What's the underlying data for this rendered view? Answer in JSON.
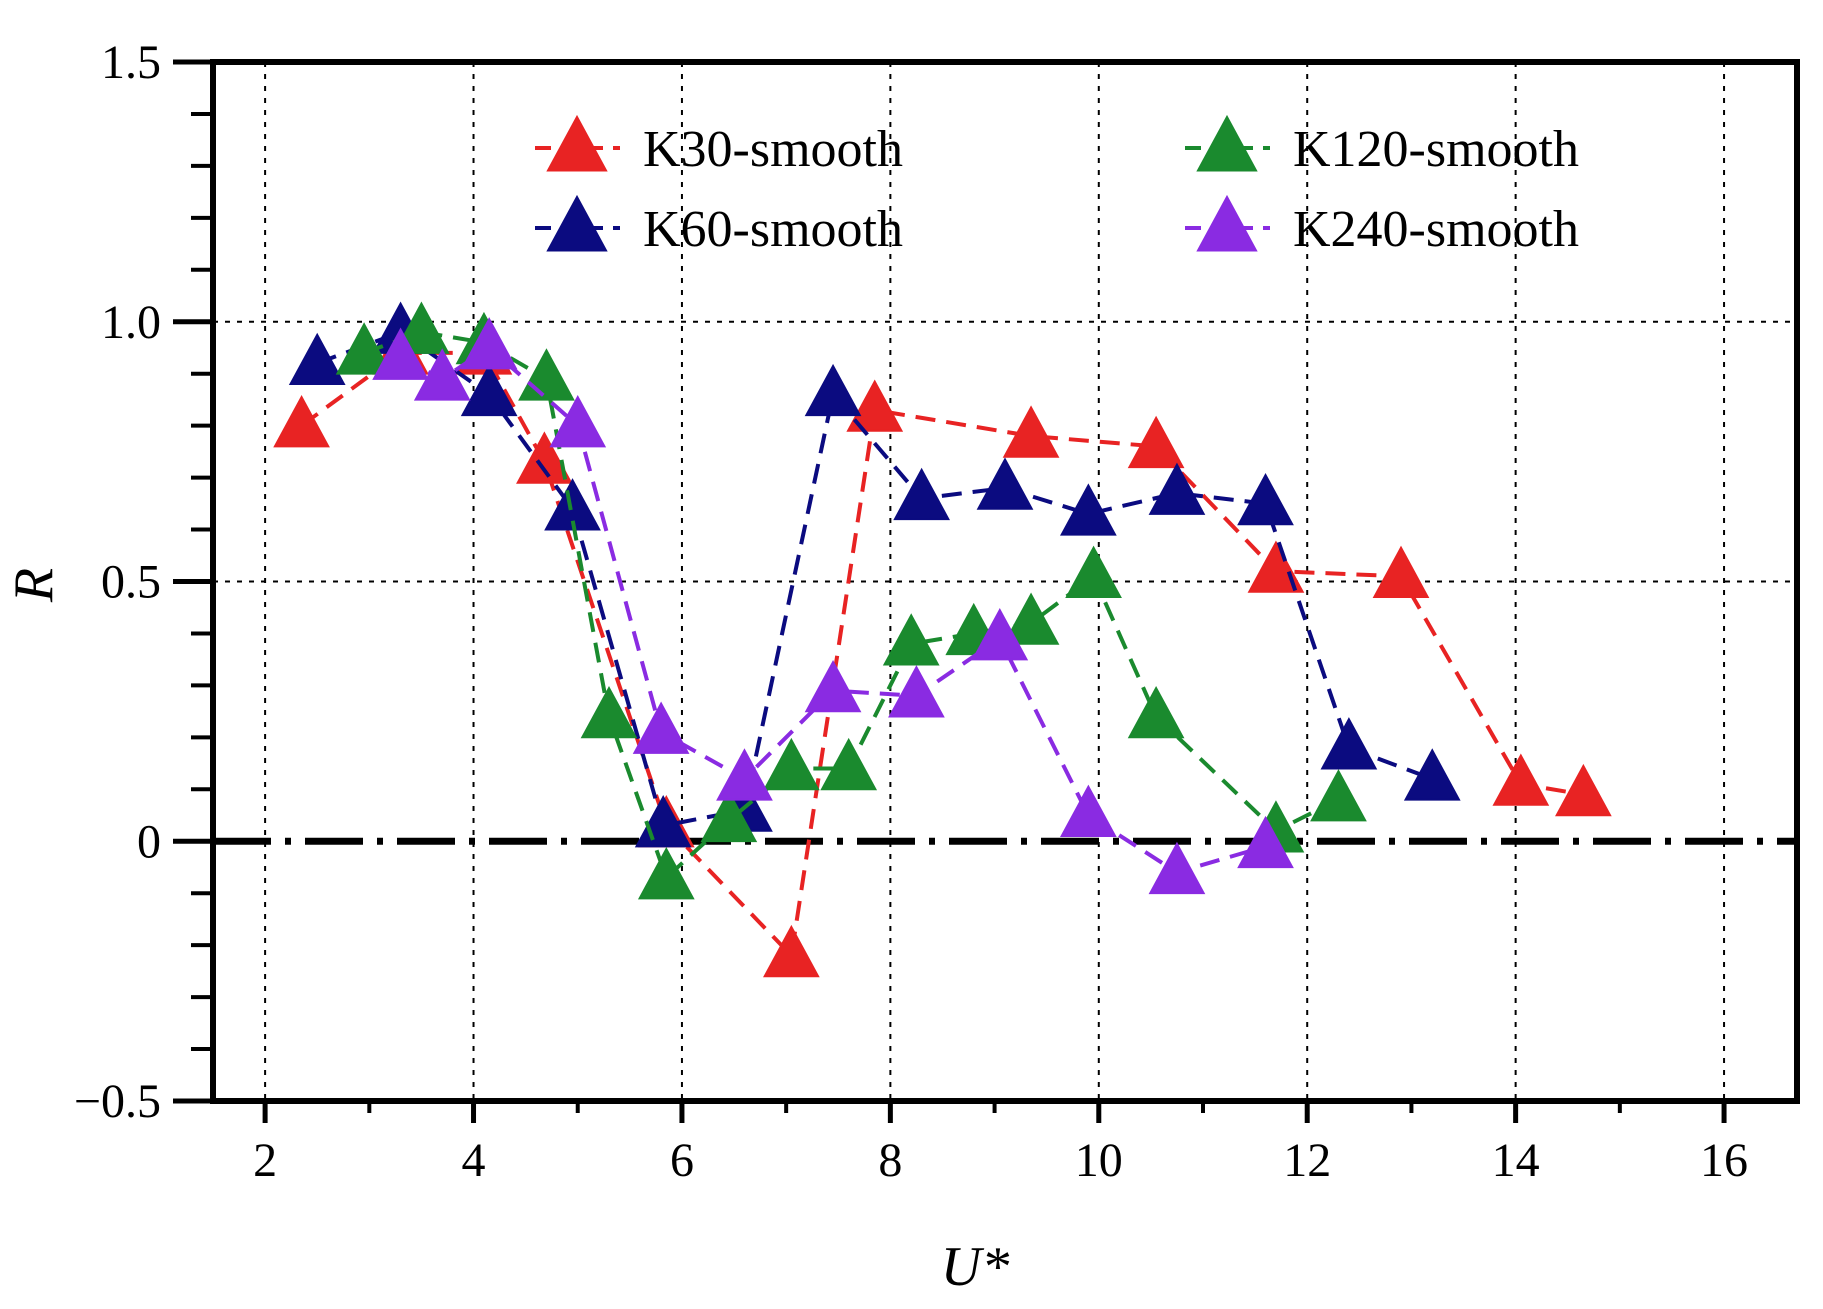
{
  "chart_data": {
    "type": "line",
    "title": "",
    "xlabel": "U*",
    "ylabel": "R",
    "xlim": [
      1.5,
      16.7
    ],
    "ylim": [
      -0.5,
      1.5
    ],
    "xticks": [
      2,
      4,
      6,
      8,
      10,
      12,
      14,
      16
    ],
    "yticks": [
      -0.5,
      0,
      0.5,
      1.0,
      1.5
    ],
    "xtick_labels": [
      "2",
      "4",
      "6",
      "8",
      "10",
      "12",
      "14",
      "16"
    ],
    "ytick_labels": [
      "−0.5",
      "0",
      "0.5",
      "1.0",
      "1.5"
    ],
    "grid": true,
    "zero_line": 0,
    "legend_position": "top-right",
    "series": [
      {
        "name": "K30-smooth",
        "color": "#e82323",
        "x": [
          2.35,
          3.3,
          4.1,
          4.68,
          5.85,
          7.05,
          7.85,
          9.35,
          10.55,
          11.7,
          12.9,
          14.05,
          14.65
        ],
        "y": [
          0.8,
          0.94,
          0.94,
          0.73,
          0.03,
          -0.22,
          0.83,
          0.78,
          0.76,
          0.52,
          0.51,
          0.11,
          0.09
        ]
      },
      {
        "name": "K60-smooth",
        "color": "#0b0b80",
        "x": [
          2.5,
          3.3,
          4.15,
          4.95,
          5.82,
          6.6,
          7.45,
          8.3,
          9.1,
          9.9,
          10.75,
          11.6,
          12.4,
          13.2
        ],
        "y": [
          0.92,
          0.98,
          0.86,
          0.64,
          0.03,
          0.06,
          0.86,
          0.66,
          0.68,
          0.63,
          0.67,
          0.65,
          0.18,
          0.12
        ]
      },
      {
        "name": "K120-smooth",
        "color": "#1a8a2e",
        "x": [
          2.95,
          3.5,
          4.1,
          4.7,
          5.3,
          5.85,
          6.45,
          7.05,
          7.6,
          8.2,
          8.8,
          9.35,
          9.95,
          10.55,
          11.7,
          12.3
        ],
        "y": [
          0.94,
          0.98,
          0.96,
          0.89,
          0.24,
          -0.07,
          0.04,
          0.14,
          0.14,
          0.38,
          0.4,
          0.42,
          0.51,
          0.24,
          0.02,
          0.08
        ]
      },
      {
        "name": "K240-smooth",
        "color": "#8a2be2",
        "x": [
          3.3,
          3.7,
          4.15,
          5.0,
          5.8,
          6.6,
          7.45,
          8.25,
          9.05,
          9.9,
          10.75,
          11.6
        ],
        "y": [
          0.93,
          0.89,
          0.95,
          0.8,
          0.21,
          0.12,
          0.29,
          0.28,
          0.39,
          0.05,
          -0.06,
          -0.01
        ]
      }
    ]
  }
}
